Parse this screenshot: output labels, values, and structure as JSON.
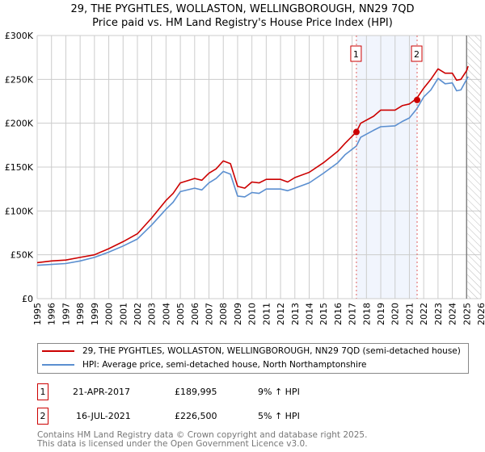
{
  "chart_data": {
    "type": "line",
    "title": "29, THE PYGHTLES, WOLLASTON, WELLINGBOROUGH, NN29 7QD",
    "subtitle": "Price paid vs. HM Land Registry's House Price Index (HPI)",
    "xlabel": "",
    "ylabel": "",
    "xlim": [
      1995,
      2026
    ],
    "ylim": [
      0,
      300000
    ],
    "x_ticks": [
      "1995",
      "1996",
      "1997",
      "1998",
      "1999",
      "2000",
      "2001",
      "2002",
      "2003",
      "2004",
      "2005",
      "2006",
      "2007",
      "2008",
      "2009",
      "2010",
      "2011",
      "2012",
      "2013",
      "2014",
      "2015",
      "2016",
      "2017",
      "2018",
      "2019",
      "2020",
      "2021",
      "2022",
      "2023",
      "2024",
      "2025",
      "2026"
    ],
    "y_ticks": [
      {
        "value": 0,
        "label": "£0"
      },
      {
        "value": 50000,
        "label": "£50K"
      },
      {
        "value": 100000,
        "label": "£100K"
      },
      {
        "value": 150000,
        "label": "£150K"
      },
      {
        "value": 200000,
        "label": "£200K"
      },
      {
        "value": 250000,
        "label": "£250K"
      },
      {
        "value": 300000,
        "label": "£300K"
      }
    ],
    "grid": true,
    "shaded_range": [
      2017.3,
      2021.54
    ],
    "forecast_hatch_from": 2025.05,
    "series": [
      {
        "name": "29, THE PYGHTLES, WOLLASTON, WELLINGBOROUGH, NN29 7QD (semi-detached house)",
        "color": "#cc0000",
        "x": [
          1995,
          1996,
          1997,
          1998,
          1999,
          2000,
          2001,
          2002,
          2003,
          2004,
          2004.5,
          2005,
          2006,
          2006.5,
          2007,
          2007.5,
          2008,
          2008.5,
          2009,
          2009.5,
          2010,
          2010.5,
          2011,
          2012,
          2012.5,
          2013,
          2014,
          2015,
          2016,
          2016.5,
          2017.3,
          2017.6,
          2018.5,
          2019,
          2020,
          2020.5,
          2021,
          2021.5,
          2022,
          2022.5,
          2023,
          2023.5,
          2024,
          2024.3,
          2024.6,
          2025,
          2025.1
        ],
        "y": [
          41000,
          43000,
          44000,
          47000,
          50000,
          57000,
          65000,
          74000,
          92000,
          112000,
          120000,
          132000,
          137000,
          135000,
          143000,
          148000,
          157000,
          154000,
          128000,
          126000,
          133000,
          132000,
          136000,
          136000,
          133000,
          138000,
          144000,
          155000,
          168000,
          177000,
          190000,
          200000,
          208000,
          215000,
          215000,
          220000,
          222000,
          228000,
          240000,
          250000,
          262000,
          257000,
          257000,
          249000,
          250000,
          260000,
          265000
        ]
      },
      {
        "name": "HPI: Average price, semi-detached house, North Northamptonshire",
        "color": "#5b8fd0",
        "x": [
          1995,
          1996,
          1997,
          1998,
          1999,
          2000,
          2001,
          2002,
          2003,
          2004,
          2004.5,
          2005,
          2006,
          2006.5,
          2007,
          2007.5,
          2008,
          2008.5,
          2009,
          2009.5,
          2010,
          2010.5,
          2011,
          2012,
          2012.5,
          2013,
          2014,
          2015,
          2016,
          2016.5,
          2017.3,
          2017.6,
          2018.5,
          2019,
          2020,
          2020.5,
          2021,
          2021.5,
          2022,
          2022.5,
          2023,
          2023.5,
          2024,
          2024.3,
          2024.6,
          2025,
          2025.1
        ],
        "y": [
          38000,
          39000,
          40000,
          43000,
          47000,
          53000,
          60000,
          68000,
          84000,
          102000,
          110000,
          122000,
          126000,
          124000,
          132000,
          137000,
          145000,
          142000,
          117000,
          116000,
          121000,
          120000,
          125000,
          125000,
          123000,
          126000,
          132000,
          143000,
          155000,
          164000,
          174000,
          184000,
          192000,
          196000,
          197000,
          202000,
          206000,
          216000,
          230000,
          238000,
          251000,
          245000,
          246000,
          237000,
          238000,
          250000,
          253000
        ]
      }
    ],
    "sales": [
      {
        "label": "1",
        "x": 2017.3,
        "y": 189995,
        "date": "21-APR-2017",
        "price": "£189,995",
        "hpi": "9% ↑ HPI"
      },
      {
        "label": "2",
        "x": 2021.54,
        "y": 226500,
        "date": "16-JUL-2021",
        "price": "£226,500",
        "hpi": "5% ↑ HPI"
      }
    ]
  },
  "footer": {
    "line1": "Contains HM Land Registry data © Crown copyright and database right 2025.",
    "line2": "This data is licensed under the Open Government Licence v3.0."
  }
}
